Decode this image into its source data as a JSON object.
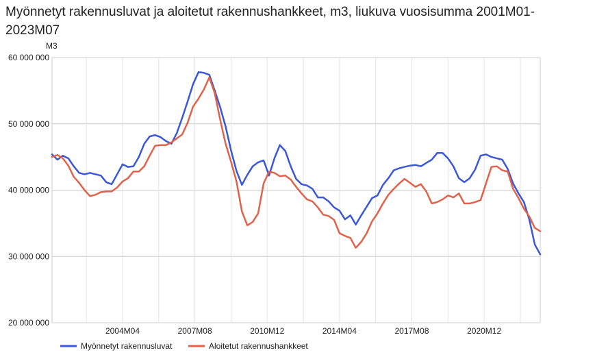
{
  "chart_data": {
    "type": "line",
    "title": "Myönnetyt rakennusluvat ja aloitetut rakennushankkeet, m3, liukuva vuosisumma 2001M01-2023M07",
    "ylabel": "M3",
    "xlabel": "",
    "ylim": [
      20000000,
      60000000
    ],
    "yticks": [
      20000000,
      30000000,
      40000000,
      50000000,
      60000000
    ],
    "ytick_labels": [
      "20 000 000",
      "30 000 000",
      "40 000 000",
      "50 000 000",
      "60 000 000"
    ],
    "xlim": [
      "2001M01",
      "2023M07"
    ],
    "xticks": [
      "2004M04",
      "2007M08",
      "2010M12",
      "2014M04",
      "2017M08",
      "2020M12"
    ],
    "grid": true,
    "legend_position": "bottom",
    "series": [
      {
        "name": "Myönnetyt rakennusluvat",
        "color": "#3a56d9",
        "points": [
          [
            "2001M01",
            45.4
          ],
          [
            "2001M04",
            44.6
          ],
          [
            "2001M07",
            45.2
          ],
          [
            "2001M10",
            44.8
          ],
          [
            "2002M01",
            43.6
          ],
          [
            "2002M04",
            42.6
          ],
          [
            "2002M07",
            42.4
          ],
          [
            "2002M10",
            42.6
          ],
          [
            "2003M01",
            42.4
          ],
          [
            "2003M04",
            42.2
          ],
          [
            "2003M07",
            41.2
          ],
          [
            "2003M10",
            40.9
          ],
          [
            "2004M01",
            42.4
          ],
          [
            "2004M04",
            43.9
          ],
          [
            "2004M07",
            43.5
          ],
          [
            "2004M10",
            43.6
          ],
          [
            "2005M01",
            45.0
          ],
          [
            "2005M04",
            47.0
          ],
          [
            "2005M07",
            48.1
          ],
          [
            "2005M10",
            48.3
          ],
          [
            "2006M01",
            48.0
          ],
          [
            "2006M04",
            47.4
          ],
          [
            "2006M07",
            47.0
          ],
          [
            "2006M10",
            48.6
          ],
          [
            "2007M01",
            50.9
          ],
          [
            "2007M04",
            53.4
          ],
          [
            "2007M07",
            56.0
          ],
          [
            "2007M10",
            57.8
          ],
          [
            "2008M01",
            57.7
          ],
          [
            "2008M04",
            57.4
          ],
          [
            "2008M07",
            55.0
          ],
          [
            "2008M10",
            52.5
          ],
          [
            "2009M01",
            49.6
          ],
          [
            "2009M04",
            46.0
          ],
          [
            "2009M07",
            42.9
          ],
          [
            "2009M10",
            40.8
          ],
          [
            "2010M01",
            42.3
          ],
          [
            "2010M04",
            43.6
          ],
          [
            "2010M07",
            44.2
          ],
          [
            "2010M10",
            44.5
          ],
          [
            "2011M01",
            42.2
          ],
          [
            "2011M04",
            44.8
          ],
          [
            "2011M07",
            46.8
          ],
          [
            "2011M10",
            45.9
          ],
          [
            "2012M01",
            43.6
          ],
          [
            "2012M04",
            41.7
          ],
          [
            "2012M07",
            40.9
          ],
          [
            "2012M10",
            40.7
          ],
          [
            "2013M01",
            40.2
          ],
          [
            "2013M04",
            38.9
          ],
          [
            "2013M07",
            38.9
          ],
          [
            "2013M10",
            38.3
          ],
          [
            "2014M01",
            37.4
          ],
          [
            "2014M04",
            36.9
          ],
          [
            "2014M07",
            35.6
          ],
          [
            "2014M10",
            36.2
          ],
          [
            "2015M01",
            34.8
          ],
          [
            "2015M04",
            36.2
          ],
          [
            "2015M07",
            37.5
          ],
          [
            "2015M10",
            38.8
          ],
          [
            "2016M01",
            39.2
          ],
          [
            "2016M04",
            40.8
          ],
          [
            "2016M07",
            41.8
          ],
          [
            "2016M10",
            43.0
          ],
          [
            "2017M01",
            43.3
          ],
          [
            "2017M04",
            43.5
          ],
          [
            "2017M07",
            43.7
          ],
          [
            "2017M10",
            43.8
          ],
          [
            "2018M01",
            43.6
          ],
          [
            "2018M04",
            44.1
          ],
          [
            "2018M07",
            44.6
          ],
          [
            "2018M10",
            45.6
          ],
          [
            "2019M01",
            45.6
          ],
          [
            "2019M04",
            44.8
          ],
          [
            "2019M07",
            43.6
          ],
          [
            "2019M10",
            41.8
          ],
          [
            "2020M01",
            41.2
          ],
          [
            "2020M04",
            41.8
          ],
          [
            "2020M07",
            43.1
          ],
          [
            "2020M10",
            45.2
          ],
          [
            "2021M01",
            45.4
          ],
          [
            "2021M04",
            45.0
          ],
          [
            "2021M07",
            44.8
          ],
          [
            "2021M10",
            44.6
          ],
          [
            "2022M01",
            43.2
          ],
          [
            "2022M04",
            41.0
          ],
          [
            "2022M07",
            39.5
          ],
          [
            "2022M10",
            38.2
          ],
          [
            "2023M01",
            35.5
          ],
          [
            "2023M04",
            31.8
          ],
          [
            "2023M07",
            30.3
          ]
        ]
      },
      {
        "name": "Aloitetut rakennushankkeet",
        "color": "#e0624a",
        "points": [
          [
            "2001M01",
            45.0
          ],
          [
            "2001M04",
            45.3
          ],
          [
            "2001M07",
            44.8
          ],
          [
            "2001M10",
            43.7
          ],
          [
            "2002M01",
            42.0
          ],
          [
            "2002M04",
            41.1
          ],
          [
            "2002M07",
            40.0
          ],
          [
            "2002M10",
            39.1
          ],
          [
            "2003M01",
            39.3
          ],
          [
            "2003M04",
            39.7
          ],
          [
            "2003M07",
            39.8
          ],
          [
            "2003M10",
            39.8
          ],
          [
            "2004M01",
            40.4
          ],
          [
            "2004M04",
            41.3
          ],
          [
            "2004M07",
            41.8
          ],
          [
            "2004M10",
            42.8
          ],
          [
            "2005M01",
            42.8
          ],
          [
            "2005M04",
            43.6
          ],
          [
            "2005M07",
            45.2
          ],
          [
            "2005M10",
            46.7
          ],
          [
            "2006M01",
            46.8
          ],
          [
            "2006M04",
            46.8
          ],
          [
            "2006M07",
            47.2
          ],
          [
            "2006M10",
            47.8
          ],
          [
            "2007M01",
            48.4
          ],
          [
            "2007M04",
            50.2
          ],
          [
            "2007M07",
            52.6
          ],
          [
            "2007M10",
            53.8
          ],
          [
            "2008M01",
            55.2
          ],
          [
            "2008M04",
            57.0
          ],
          [
            "2008M07",
            54.6
          ],
          [
            "2008M10",
            50.6
          ],
          [
            "2009M01",
            47.0
          ],
          [
            "2009M04",
            44.3
          ],
          [
            "2009M07",
            41.3
          ],
          [
            "2009M10",
            36.8
          ],
          [
            "2010M01",
            34.7
          ],
          [
            "2010M04",
            35.2
          ],
          [
            "2010M07",
            36.5
          ],
          [
            "2010M10",
            41.0
          ],
          [
            "2011M01",
            42.8
          ],
          [
            "2011M04",
            42.6
          ],
          [
            "2011M07",
            42.1
          ],
          [
            "2011M10",
            42.2
          ],
          [
            "2012M01",
            41.6
          ],
          [
            "2012M04",
            40.5
          ],
          [
            "2012M07",
            39.5
          ],
          [
            "2012M10",
            38.6
          ],
          [
            "2013M01",
            38.3
          ],
          [
            "2013M04",
            37.4
          ],
          [
            "2013M07",
            36.3
          ],
          [
            "2013M10",
            36.1
          ],
          [
            "2014M01",
            35.5
          ],
          [
            "2014M04",
            33.5
          ],
          [
            "2014M07",
            33.1
          ],
          [
            "2014M10",
            32.8
          ],
          [
            "2015M01",
            31.3
          ],
          [
            "2015M04",
            32.2
          ],
          [
            "2015M07",
            33.5
          ],
          [
            "2015M10",
            35.3
          ],
          [
            "2016M01",
            36.5
          ],
          [
            "2016M04",
            38.0
          ],
          [
            "2016M07",
            39.3
          ],
          [
            "2016M10",
            40.2
          ],
          [
            "2017M01",
            41.0
          ],
          [
            "2017M04",
            41.7
          ],
          [
            "2017M07",
            41.1
          ],
          [
            "2017M10",
            40.5
          ],
          [
            "2018M01",
            40.9
          ],
          [
            "2018M04",
            39.8
          ],
          [
            "2018M07",
            38.0
          ],
          [
            "2018M10",
            38.2
          ],
          [
            "2019M01",
            38.6
          ],
          [
            "2019M04",
            39.2
          ],
          [
            "2019M07",
            38.9
          ],
          [
            "2019M10",
            39.5
          ],
          [
            "2020M01",
            38.0
          ],
          [
            "2020M04",
            38.0
          ],
          [
            "2020M07",
            38.2
          ],
          [
            "2020M10",
            38.5
          ],
          [
            "2021M01",
            41.0
          ],
          [
            "2021M04",
            43.5
          ],
          [
            "2021M07",
            43.6
          ],
          [
            "2021M10",
            43.0
          ],
          [
            "2022M01",
            42.8
          ],
          [
            "2022M04",
            40.2
          ],
          [
            "2022M07",
            38.8
          ],
          [
            "2022M10",
            37.2
          ],
          [
            "2023M01",
            36.0
          ],
          [
            "2023M04",
            34.3
          ],
          [
            "2023M07",
            33.8
          ]
        ]
      }
    ]
  }
}
